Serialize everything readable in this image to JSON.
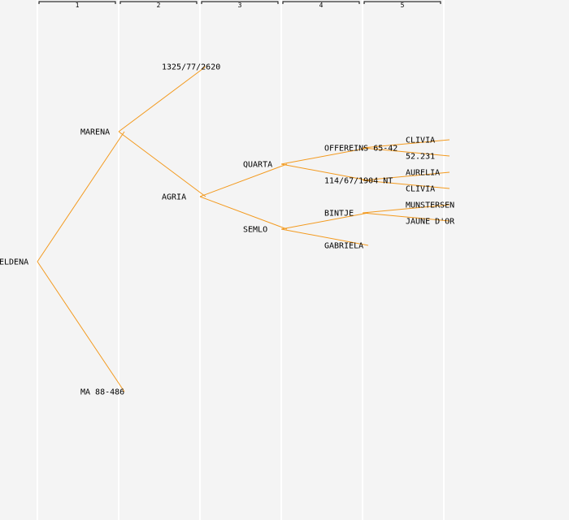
{
  "generations": [
    "1",
    "2",
    "3",
    "4",
    "5"
  ],
  "root": {
    "name": "ELDENA",
    "parents": [
      {
        "name": "MARENA",
        "parents": [
          {
            "name": "1325/77/2620"
          },
          {
            "name": "AGRIA",
            "parents": [
              {
                "name": "QUARTA",
                "parents": [
                  {
                    "name": "OFFEREINS 65-42",
                    "parents": [
                      {
                        "name": "CLIVIA"
                      },
                      {
                        "name": "52.231"
                      }
                    ]
                  },
                  {
                    "name": "114/67/1904 NT",
                    "parents": [
                      {
                        "name": "AURELIA"
                      },
                      {
                        "name": "CLIVIA"
                      }
                    ]
                  }
                ]
              },
              {
                "name": "SEMLO",
                "parents": [
                  {
                    "name": "BINTJE",
                    "parents": [
                      {
                        "name": "MUNSTERSEN"
                      },
                      {
                        "name": "JAUNE D'OR"
                      }
                    ]
                  },
                  {
                    "name": "GABRIELA"
                  }
                ]
              }
            ]
          }
        ]
      },
      {
        "name": "MA 88-486"
      }
    ]
  },
  "colors": {
    "edge": "#f39a1e",
    "background": "#f4f4f4",
    "column_line": "#ffffff"
  }
}
